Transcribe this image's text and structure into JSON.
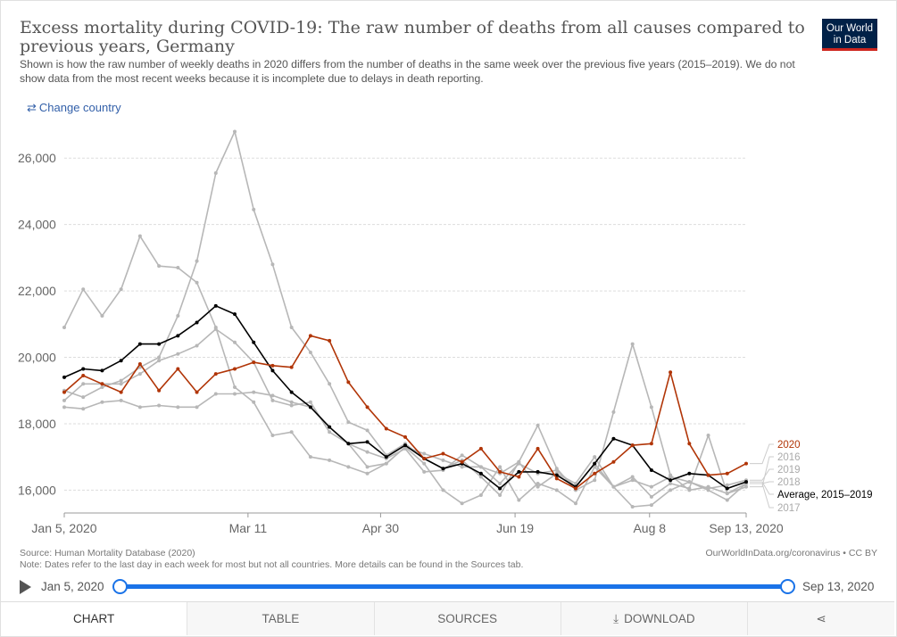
{
  "header": {
    "title": "Excess mortality during COVID-19: The raw number of deaths from all causes compared to previous years, Germany",
    "subtitle": "Shown is how the raw number of weekly deaths in 2020 differs from the number of deaths in the same week over the previous five years (2015–2019). We do not show data from the most recent weeks because it is incomplete due to delays in death reporting.",
    "logo_line1": "Our World",
    "logo_line2": "in Data",
    "change_country": "Change country"
  },
  "chart_data": {
    "type": "line",
    "title": "Excess mortality during COVID-19: The raw number of deaths from all causes compared to previous years, Germany",
    "x_tick_labels": [
      "Jan 5, 2020",
      "Mar 11",
      "Apr 30",
      "Jun 19",
      "Aug 8",
      "Sep 13, 2020"
    ],
    "x_tick_weeks": [
      0,
      9.7,
      16.7,
      23.8,
      30.9,
      36
    ],
    "yticks": [
      16000,
      18000,
      20000,
      22000,
      24000,
      26000
    ],
    "ytick_labels": [
      "16,000",
      "18,000",
      "20,000",
      "22,000",
      "24,000",
      "26,000"
    ],
    "ylim": [
      15500,
      27000
    ],
    "grid": true,
    "legend_position": "right",
    "series": [
      {
        "name": "2017",
        "color": "#b7b7b7",
        "values": [
          20900,
          22050,
          21250,
          22050,
          23650,
          22750,
          22700,
          22250,
          20900,
          19100,
          18650,
          17650,
          17750,
          17000,
          16900,
          16700,
          16500,
          16800,
          17300,
          16800,
          16000,
          15600,
          15850,
          16700,
          15700,
          16200,
          16000,
          15600,
          16700,
          16100,
          15500,
          15550,
          16000,
          16250,
          16000,
          15700,
          16200
        ]
      },
      {
        "name": "2016",
        "color": "#b7b7b7",
        "values": [
          18500,
          18450,
          18650,
          18700,
          18500,
          18550,
          18500,
          18500,
          18900,
          18900,
          18950,
          18850,
          18650,
          18500,
          17900,
          17400,
          16700,
          16800,
          17300,
          17100,
          16900,
          16700,
          16700,
          16200,
          16800,
          16500,
          16600,
          16100,
          16800,
          16100,
          16400,
          15800,
          16200,
          16050,
          17650,
          15900,
          16100
        ]
      },
      {
        "name": "2019",
        "color": "#b7b7b7",
        "values": [
          18700,
          19200,
          19200,
          19200,
          19500,
          19900,
          20100,
          20350,
          20850,
          20450,
          19850,
          18700,
          18550,
          18650,
          17750,
          17400,
          17150,
          16950,
          17250,
          16550,
          16600,
          17050,
          16700,
          16500,
          16850,
          16100,
          16500,
          16200,
          17000,
          16100,
          16300,
          16100,
          16400,
          16250,
          16050,
          16150,
          16300
        ]
      },
      {
        "name": "2018",
        "color": "#b7b7b7",
        "values": [
          19000,
          18800,
          19100,
          19300,
          19700,
          20000,
          21250,
          22900,
          25550,
          26800,
          24450,
          22800,
          20900,
          20150,
          19200,
          18050,
          17800,
          17050,
          17400,
          16950,
          16650,
          16900,
          16400,
          15850,
          16850,
          17950,
          16650,
          16000,
          16300,
          18350,
          20400,
          18500,
          16450,
          16000,
          16100,
          15900,
          16200
        ]
      },
      {
        "name": "Average, 2015–2019",
        "color": "#000000",
        "values": [
          19400,
          19650,
          19600,
          19900,
          20400,
          20400,
          20650,
          21050,
          21550,
          21300,
          20450,
          19600,
          18950,
          18500,
          17900,
          17400,
          17450,
          17000,
          17350,
          16950,
          16650,
          16800,
          16500,
          16050,
          16550,
          16550,
          16450,
          16100,
          16800,
          17550,
          17350,
          16600,
          16300,
          16500,
          16450,
          16050,
          16250
        ]
      },
      {
        "name": "2020",
        "color": "#b13507",
        "values": [
          18950,
          19450,
          19200,
          18950,
          19800,
          19000,
          19650,
          18950,
          19500,
          19650,
          19850,
          19750,
          19700,
          20650,
          20500,
          19250,
          18500,
          17850,
          17600,
          16950,
          17100,
          16850,
          17250,
          16550,
          16400,
          17250,
          16350,
          16050,
          16500,
          16850,
          17350,
          17400,
          19550,
          17400,
          16450,
          16500,
          16800
        ]
      }
    ]
  },
  "footer": {
    "source": "Source: Human Mortality Database (2020)",
    "note": "Note: Dates refer to the last day in each week for most but not all countries. More details can be found in the Sources tab.",
    "credit": "OurWorldInData.org/coronavirus • CC BY"
  },
  "timeline": {
    "start_label": "Jan 5, 2020",
    "end_label": "Sep 13, 2020"
  },
  "tabs": {
    "chart": "CHART",
    "table": "TABLE",
    "sources": "SOURCES",
    "download": "DOWNLOAD"
  }
}
